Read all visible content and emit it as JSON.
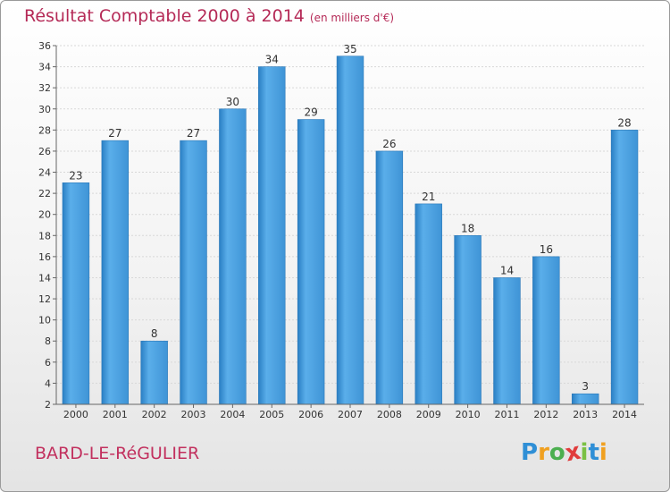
{
  "chart_data": {
    "type": "bar",
    "title": "Résultat Comptable 2000 à 2014",
    "unit_label": "(en milliers d'€)",
    "categories": [
      "2000",
      "2001",
      "2002",
      "2003",
      "2004",
      "2005",
      "2006",
      "2007",
      "2008",
      "2009",
      "2010",
      "2011",
      "2012",
      "2013",
      "2014"
    ],
    "values": [
      23,
      27,
      8,
      27,
      30,
      34,
      29,
      35,
      26,
      21,
      18,
      14,
      16,
      3,
      28
    ],
    "ylim": [
      2,
      36
    ],
    "yticks": [
      2,
      4,
      6,
      8,
      10,
      12,
      14,
      16,
      18,
      20,
      22,
      24,
      26,
      28,
      30,
      32,
      34,
      36
    ],
    "grid": true,
    "bar_color": "#4a9ee0"
  },
  "commune_name": "BARD-LE-RéGULIER",
  "logo": {
    "letters": [
      "P",
      "r",
      "o",
      "x",
      "i",
      "t",
      "i"
    ],
    "colors": [
      "#2f8fd6",
      "#f0a020",
      "#4caf50",
      "#e03c3c",
      "#7bc043",
      "#2f8fd6",
      "#f0a020"
    ]
  }
}
